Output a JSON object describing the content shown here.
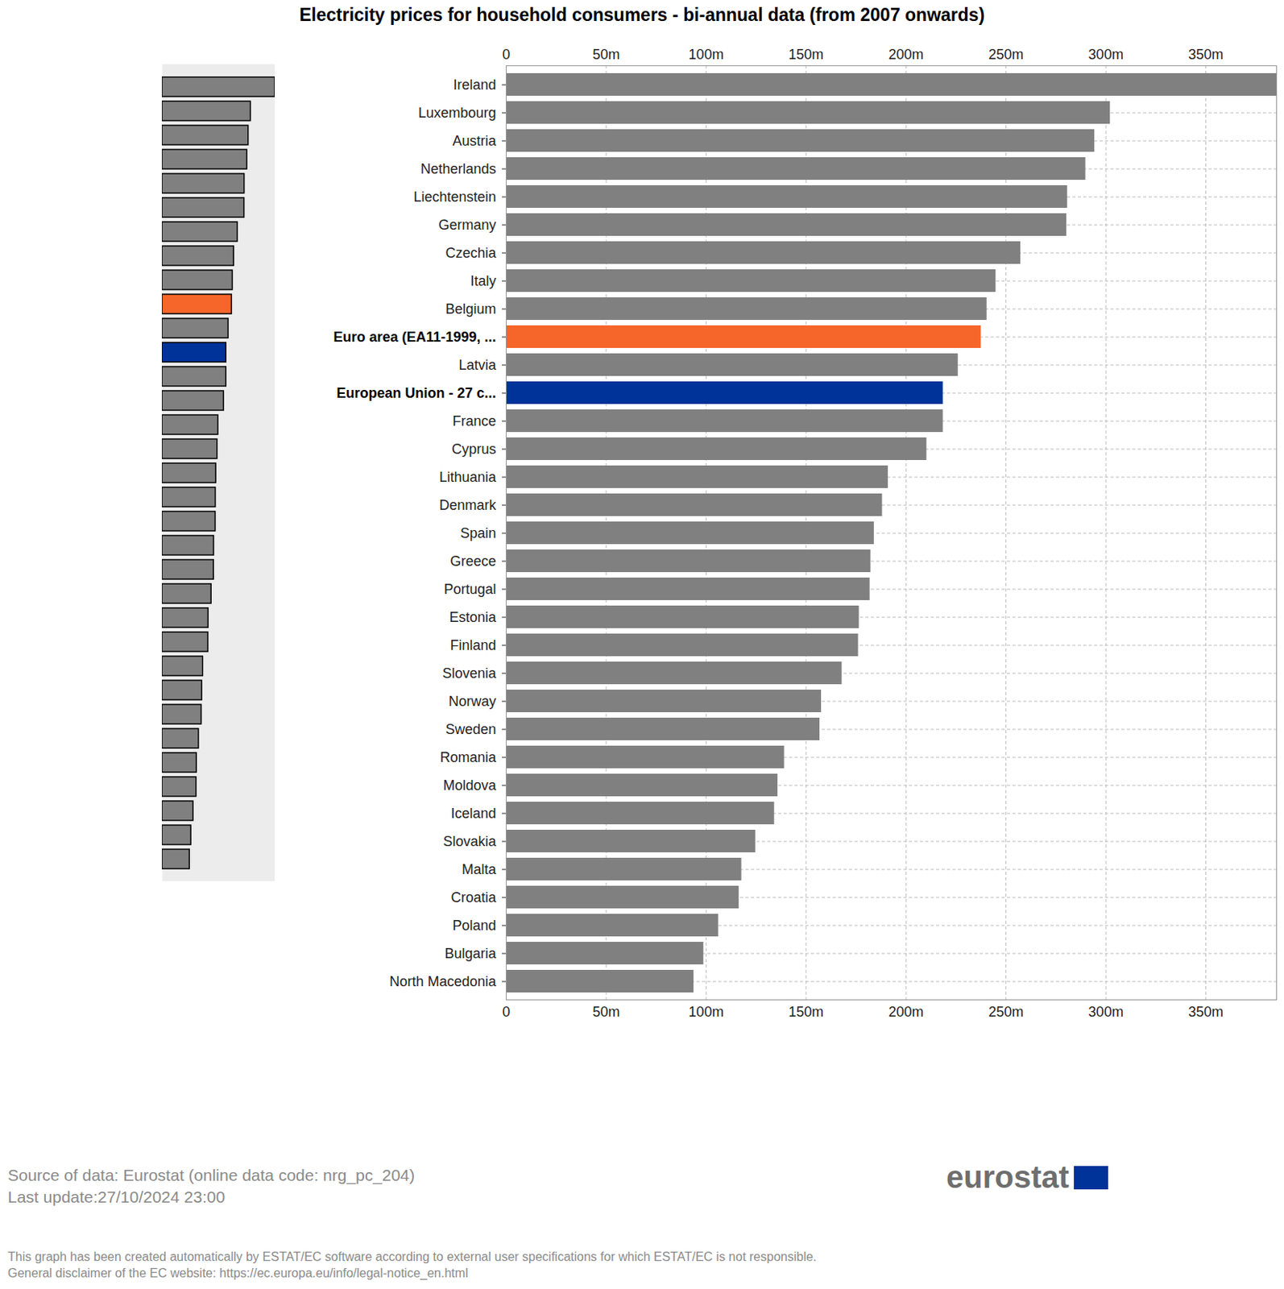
{
  "chart_data": {
    "type": "bar",
    "orientation": "horizontal",
    "title": "Electricity prices for household consumers - bi-annual data (from 2007 onwards)",
    "categories": [
      "Ireland",
      "Luxembourg",
      "Austria",
      "Netherlands",
      "Liechtenstein",
      "Germany",
      "Czechia",
      "Italy",
      "Belgium",
      "Euro area (EA11-1999, ...",
      "Latvia",
      "European Union - 27 c...",
      "France",
      "Cyprus",
      "Lithuania",
      "Denmark",
      "Spain",
      "Greece",
      "Portugal",
      "Estonia",
      "Finland",
      "Slovenia",
      "Norway",
      "Sweden",
      "Romania",
      "Moldova",
      "Iceland",
      "Slovakia",
      "Malta",
      "Croatia",
      "Poland",
      "Bulgaria",
      "North Macedonia"
    ],
    "values": [
      385.4,
      302.2,
      294.4,
      289.9,
      280.8,
      280.4,
      257.4,
      245.0,
      240.5,
      237.6,
      226.1,
      218.6,
      218.6,
      210.4,
      191.1,
      188.2,
      184.1,
      182.4,
      182.0,
      176.6,
      176.2,
      168.0,
      157.7,
      156.9,
      139.2,
      135.9,
      134.2,
      124.8,
      117.8,
      116.5,
      106.2,
      98.8,
      93.9
    ],
    "colors": [
      "#808080",
      "#808080",
      "#808080",
      "#808080",
      "#808080",
      "#808080",
      "#808080",
      "#808080",
      "#808080",
      "#f6652a",
      "#808080",
      "#00339a",
      "#808080",
      "#808080",
      "#808080",
      "#808080",
      "#808080",
      "#808080",
      "#808080",
      "#808080",
      "#808080",
      "#808080",
      "#808080",
      "#808080",
      "#808080",
      "#808080",
      "#808080",
      "#808080",
      "#808080",
      "#808080",
      "#808080",
      "#808080",
      "#808080"
    ],
    "color": "#808080",
    "xlim": [
      0,
      385.4
    ],
    "xticks": [
      0,
      {
        "value": 50,
        "label": "50m"
      },
      {
        "value": 100,
        "label": "100m"
      },
      {
        "value": 150,
        "label": "150m"
      },
      {
        "value": 200,
        "label": "200m"
      },
      {
        "value": 250,
        "label": "250m"
      },
      {
        "value": 300,
        "label": "300m"
      },
      {
        "value": 350,
        "label": "350m"
      }
    ],
    "grid": true,
    "source": "Source of data: Eurostat (online data code: nrg_pc_204)",
    "last_update": "Last update:27/10/2024 23:00",
    "logo": "eurostat",
    "disclaimer": [
      "This graph has been created automatically by ESTAT/EC software according to external user specifications for which ESTAT/EC is not responsible.",
      "General disclaimer of the EC website: https://ec.europa.eu/info/legal-notice_en.html"
    ]
  }
}
